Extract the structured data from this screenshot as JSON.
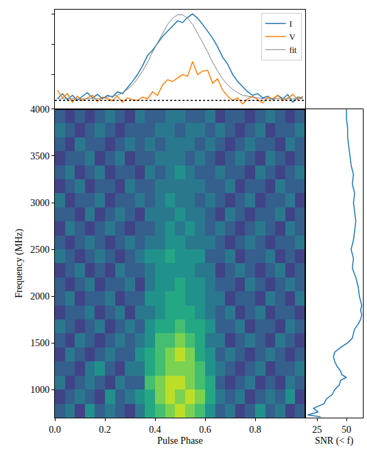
{
  "chart_data": [
    {
      "type": "line",
      "xlim": [
        0,
        1
      ],
      "ylim": [
        -0.1,
        1.05
      ],
      "yticks": [
        0.3,
        0.65,
        1.0
      ],
      "tick_labels": false,
      "legend": "upper right",
      "baseline": 0,
      "x": [
        0.01,
        0.03,
        0.05,
        0.07,
        0.09,
        0.11,
        0.13,
        0.15,
        0.17,
        0.19,
        0.21,
        0.23,
        0.25,
        0.27,
        0.29,
        0.31,
        0.33,
        0.35,
        0.37,
        0.39,
        0.41,
        0.43,
        0.45,
        0.47,
        0.49,
        0.51,
        0.53,
        0.55,
        0.57,
        0.59,
        0.61,
        0.63,
        0.65,
        0.67,
        0.69,
        0.71,
        0.73,
        0.75,
        0.77,
        0.79,
        0.81,
        0.83,
        0.85,
        0.87,
        0.89,
        0.91,
        0.93,
        0.95,
        0.97,
        0.99
      ],
      "series": [
        {
          "name": "I",
          "color": "#1f77b4",
          "values": [
            0.02,
            0.08,
            0.01,
            0.06,
            0.0,
            0.05,
            0.09,
            0.03,
            0.07,
            0.02,
            0.06,
            0.04,
            0.1,
            0.08,
            0.15,
            0.22,
            0.3,
            0.4,
            0.52,
            0.58,
            0.66,
            0.74,
            0.8,
            0.86,
            0.92,
            0.9,
            0.96,
            1.0,
            0.95,
            0.88,
            0.8,
            0.72,
            0.62,
            0.5,
            0.42,
            0.3,
            0.22,
            0.16,
            0.1,
            0.06,
            0.08,
            0.03,
            0.05,
            0.01,
            0.06,
            0.02,
            0.07,
            -0.02,
            0.04,
            0.03
          ]
        },
        {
          "name": "V",
          "color": "#ff7f0e",
          "values": [
            0.12,
            0.03,
            0.08,
            -0.02,
            0.05,
            0.0,
            0.03,
            0.06,
            -0.01,
            0.04,
            0.02,
            0.0,
            0.05,
            -0.02,
            0.03,
            0.01,
            0.0,
            0.04,
            0.02,
            0.1,
            0.06,
            0.18,
            0.24,
            0.22,
            0.26,
            0.3,
            0.28,
            0.45,
            0.3,
            0.34,
            0.35,
            0.2,
            0.25,
            0.12,
            0.05,
            0.0,
            0.03,
            -0.04,
            0.02,
            0.05,
            0.01,
            -0.03,
            0.04,
            0.02,
            0.06,
            0.0,
            0.03,
            0.07,
            0.01,
            0.05
          ]
        },
        {
          "name": "fit",
          "color": "#808080",
          "values": [
            0.02,
            0.02,
            0.02,
            0.02,
            0.02,
            0.02,
            0.02,
            0.02,
            0.02,
            0.03,
            0.04,
            0.05,
            0.06,
            0.09,
            0.13,
            0.18,
            0.25,
            0.34,
            0.44,
            0.56,
            0.67,
            0.78,
            0.88,
            0.95,
            0.99,
            0.99,
            0.95,
            0.88,
            0.78,
            0.67,
            0.56,
            0.44,
            0.34,
            0.25,
            0.18,
            0.13,
            0.09,
            0.06,
            0.05,
            0.04,
            0.03,
            0.02,
            0.02,
            0.02,
            0.02,
            0.02,
            0.02,
            0.02,
            0.02,
            0.02
          ]
        }
      ]
    },
    {
      "type": "heatmap",
      "xlabel": "Pulse Phase",
      "ylabel": "Frequency (MHz)",
      "xlim": [
        0,
        1
      ],
      "ylim": [
        700,
        4000
      ],
      "xticks": [
        {
          "value": 0,
          "label": "0.0"
        },
        {
          "value": 0.2,
          "label": "0.2"
        },
        {
          "value": 0.4,
          "label": "0.4"
        },
        {
          "value": 0.6,
          "label": "0.6"
        },
        {
          "value": 0.8,
          "label": "0.8"
        }
      ],
      "yticks": [
        1000,
        1500,
        2000,
        2500,
        3000,
        3500,
        4000
      ],
      "color": "viridis",
      "zlim": [
        0,
        10
      ],
      "x": [
        0.02,
        0.06,
        0.1,
        0.14,
        0.18,
        0.22,
        0.26,
        0.3,
        0.34,
        0.38,
        0.42,
        0.46,
        0.5,
        0.54,
        0.58,
        0.62,
        0.66,
        0.7,
        0.74,
        0.78,
        0.82,
        0.86,
        0.9,
        0.94,
        0.98
      ],
      "y": [
        775,
        925,
        1075,
        1225,
        1375,
        1525,
        1675,
        1825,
        1975,
        2125,
        2275,
        2425,
        2575,
        2725,
        2875,
        3025,
        3175,
        3325,
        3475,
        3625,
        3775,
        3925
      ],
      "cells": [
        [
          3,
          4,
          2,
          5,
          3,
          4,
          3,
          2,
          4,
          6,
          7,
          8,
          9,
          8,
          7,
          5,
          3,
          4,
          2,
          3,
          5,
          3,
          4,
          2,
          3
        ],
        [
          2,
          3,
          4,
          3,
          2,
          5,
          3,
          4,
          5,
          6,
          8,
          9,
          8,
          9,
          8,
          6,
          4,
          3,
          4,
          2,
          3,
          4,
          3,
          5,
          2
        ],
        [
          4,
          2,
          3,
          4,
          3,
          2,
          4,
          3,
          3,
          7,
          8,
          9,
          9,
          8,
          7,
          6,
          3,
          2,
          3,
          4,
          2,
          3,
          2,
          4,
          3
        ],
        [
          3,
          3,
          2,
          4,
          5,
          3,
          2,
          4,
          4,
          6,
          7,
          8,
          8,
          8,
          7,
          5,
          4,
          3,
          2,
          3,
          4,
          2,
          3,
          3,
          4
        ],
        [
          2,
          4,
          3,
          2,
          3,
          4,
          3,
          3,
          5,
          6,
          7,
          8,
          9,
          8,
          6,
          5,
          3,
          4,
          3,
          2,
          3,
          4,
          3,
          2,
          3
        ],
        [
          3,
          2,
          4,
          3,
          2,
          3,
          4,
          3,
          4,
          5,
          7,
          7,
          8,
          7,
          6,
          4,
          4,
          2,
          3,
          4,
          3,
          2,
          4,
          3,
          2
        ],
        [
          4,
          3,
          2,
          3,
          4,
          2,
          3,
          4,
          3,
          5,
          6,
          6,
          7,
          6,
          6,
          5,
          3,
          3,
          4,
          2,
          3,
          3,
          2,
          4,
          3
        ],
        [
          2,
          3,
          3,
          4,
          2,
          3,
          4,
          2,
          4,
          4,
          5,
          6,
          6,
          6,
          5,
          4,
          3,
          4,
          2,
          3,
          4,
          2,
          3,
          3,
          2
        ],
        [
          3,
          4,
          2,
          3,
          3,
          4,
          2,
          3,
          3,
          5,
          5,
          6,
          6,
          5,
          5,
          4,
          4,
          2,
          3,
          3,
          2,
          4,
          3,
          2,
          4
        ],
        [
          3,
          2,
          3,
          4,
          2,
          3,
          3,
          4,
          2,
          4,
          5,
          5,
          6,
          5,
          5,
          4,
          3,
          3,
          2,
          4,
          3,
          2,
          3,
          4,
          3
        ],
        [
          2,
          3,
          4,
          2,
          3,
          2,
          4,
          3,
          3,
          4,
          5,
          5,
          5,
          5,
          4,
          4,
          2,
          3,
          4,
          3,
          2,
          3,
          4,
          2,
          3
        ],
        [
          4,
          3,
          2,
          3,
          4,
          3,
          2,
          3,
          4,
          5,
          5,
          6,
          5,
          5,
          5,
          3,
          3,
          4,
          2,
          3,
          3,
          4,
          2,
          3,
          2
        ],
        [
          3,
          2,
          3,
          4,
          3,
          2,
          3,
          4,
          3,
          4,
          4,
          5,
          5,
          4,
          4,
          4,
          3,
          2,
          3,
          4,
          3,
          2,
          3,
          3,
          4
        ],
        [
          2,
          4,
          3,
          2,
          3,
          4,
          3,
          2,
          3,
          3,
          4,
          5,
          4,
          5,
          4,
          3,
          4,
          3,
          2,
          3,
          4,
          3,
          2,
          4,
          3
        ],
        [
          3,
          3,
          2,
          4,
          2,
          3,
          4,
          3,
          2,
          4,
          4,
          4,
          5,
          4,
          4,
          3,
          2,
          4,
          3,
          2,
          3,
          3,
          4,
          2,
          3
        ],
        [
          4,
          2,
          3,
          3,
          4,
          2,
          3,
          3,
          4,
          3,
          4,
          5,
          4,
          4,
          3,
          4,
          3,
          2,
          3,
          4,
          2,
          3,
          3,
          4,
          2
        ],
        [
          2,
          3,
          4,
          2,
          3,
          3,
          2,
          4,
          3,
          3,
          4,
          4,
          4,
          4,
          4,
          3,
          3,
          4,
          2,
          3,
          3,
          2,
          4,
          3,
          3
        ],
        [
          3,
          4,
          2,
          3,
          4,
          2,
          3,
          3,
          2,
          4,
          3,
          4,
          5,
          4,
          3,
          3,
          4,
          3,
          3,
          2,
          4,
          3,
          2,
          3,
          4
        ],
        [
          2,
          3,
          3,
          4,
          2,
          3,
          4,
          2,
          3,
          3,
          4,
          4,
          4,
          3,
          4,
          3,
          2,
          3,
          4,
          3,
          2,
          4,
          3,
          2,
          3
        ],
        [
          3,
          2,
          4,
          3,
          3,
          2,
          3,
          4,
          3,
          4,
          3,
          4,
          4,
          4,
          3,
          4,
          3,
          2,
          3,
          4,
          3,
          3,
          2,
          4,
          3
        ],
        [
          4,
          3,
          2,
          3,
          4,
          3,
          2,
          3,
          3,
          3,
          4,
          4,
          3,
          4,
          4,
          3,
          4,
          3,
          2,
          3,
          4,
          2,
          3,
          3,
          4
        ],
        [
          3,
          2,
          3,
          2,
          3,
          4,
          3,
          2,
          4,
          3,
          3,
          4,
          4,
          3,
          3,
          4,
          2,
          3,
          3,
          2,
          3,
          4,
          3,
          2,
          3
        ]
      ]
    },
    {
      "type": "line",
      "xlabel": "SNR (< f)",
      "xlim": [
        15,
        64
      ],
      "ylim": [
        700,
        4000
      ],
      "xticks": [
        25,
        50
      ],
      "tick_labels": "x",
      "color": "#1f77b4",
      "x": [
        28,
        17,
        26,
        22,
        31,
        33,
        38,
        40,
        44,
        45,
        50,
        46,
        45,
        42,
        40,
        39,
        40,
        45,
        51,
        55,
        56,
        57,
        60,
        62,
        63,
        62,
        63,
        61,
        60,
        58,
        55,
        56,
        54,
        56,
        57,
        58,
        57,
        56,
        57,
        55,
        56,
        54,
        53,
        52,
        51,
        51,
        50,
        50
      ],
      "y": [
        710,
        730,
        760,
        800,
        850,
        900,
        950,
        1000,
        1050,
        1100,
        1130,
        1160,
        1200,
        1250,
        1300,
        1350,
        1400,
        1450,
        1500,
        1550,
        1600,
        1650,
        1700,
        1750,
        1800,
        1850,
        1900,
        2000,
        2100,
        2200,
        2300,
        2400,
        2500,
        2600,
        2700,
        2800,
        2900,
        3000,
        3100,
        3200,
        3300,
        3400,
        3500,
        3600,
        3700,
        3800,
        3900,
        4000
      ]
    }
  ]
}
